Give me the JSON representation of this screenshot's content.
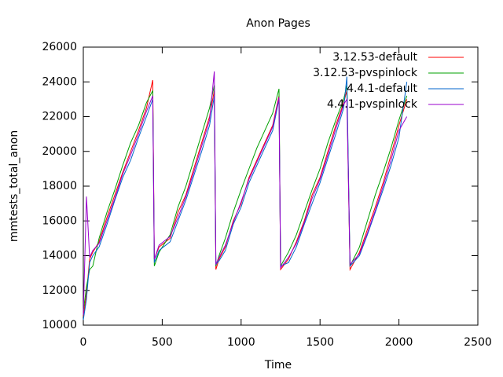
{
  "chart_data": {
    "type": "line",
    "title": "Anon Pages",
    "x_label": "Time",
    "y_label": "mmtests_total_anon",
    "x": [
      0,
      20,
      40,
      60,
      100,
      150,
      200,
      250,
      300,
      350,
      400,
      440,
      450,
      480,
      550,
      600,
      650,
      700,
      750,
      800,
      830,
      840,
      860,
      900,
      950,
      1000,
      1050,
      1100,
      1150,
      1200,
      1240,
      1250,
      1300,
      1350,
      1400,
      1450,
      1500,
      1550,
      1600,
      1650,
      1670,
      1690,
      1750,
      1800,
      1850,
      1900,
      1950,
      2000,
      2050
    ],
    "series": [
      {
        "name": "3.12.53-default",
        "color": "#ff0000",
        "values": [
          10500,
          11800,
          13800,
          14200,
          14800,
          16200,
          17500,
          18800,
          20000,
          21200,
          22500,
          24100,
          13800,
          14500,
          15000,
          16500,
          17500,
          19000,
          20500,
          22000,
          23500,
          13200,
          13800,
          14500,
          16000,
          17000,
          18500,
          19500,
          20500,
          21500,
          23200,
          13200,
          13800,
          14800,
          16000,
          17500,
          18500,
          20000,
          21500,
          22800,
          23500,
          13200,
          14200,
          15500,
          16800,
          18200,
          19800,
          21500,
          23000
        ]
      },
      {
        "name": "3.12.53-pvspinlock",
        "color": "#00a000",
        "values": [
          10800,
          12200,
          13200,
          13400,
          15000,
          16500,
          17800,
          19200,
          20500,
          21500,
          22800,
          23500,
          13400,
          14200,
          15200,
          16800,
          18000,
          19500,
          21000,
          22500,
          23800,
          13400,
          14000,
          15000,
          16500,
          17800,
          19000,
          20200,
          21200,
          22200,
          23600,
          13400,
          14200,
          15200,
          16500,
          17800,
          19000,
          20500,
          21800,
          23000,
          23800,
          13400,
          14500,
          16000,
          17500,
          18800,
          20200,
          21800,
          23200
        ]
      },
      {
        "name": "4.4.1-default",
        "color": "#0066cc",
        "values": [
          10300,
          11500,
          13600,
          14000,
          14500,
          15800,
          17200,
          18500,
          19500,
          20800,
          22000,
          23000,
          13600,
          14300,
          14800,
          16000,
          17200,
          18600,
          20000,
          21500,
          23200,
          13500,
          13700,
          14300,
          15800,
          16800,
          18200,
          19200,
          20200,
          21200,
          23000,
          13400,
          13600,
          14500,
          15800,
          17000,
          18200,
          19600,
          21000,
          22500,
          24300,
          13400,
          14000,
          15200,
          16500,
          17800,
          19200,
          20800,
          24000
        ]
      },
      {
        "name": "4.4.1-pvspinlock",
        "color": "#9900cc",
        "values": [
          10600,
          17400,
          13900,
          14300,
          14700,
          16000,
          17300,
          18700,
          19800,
          21000,
          22300,
          23200,
          13800,
          14600,
          15100,
          16200,
          17400,
          18800,
          20300,
          21800,
          24600,
          13500,
          13900,
          14600,
          15900,
          17100,
          18400,
          19400,
          20400,
          21400,
          23100,
          13300,
          13900,
          14700,
          15900,
          17300,
          18400,
          19800,
          21300,
          22700,
          23000,
          13500,
          14100,
          15300,
          16600,
          18000,
          19500,
          21200,
          22000
        ]
      }
    ],
    "xlim": [
      0,
      2500
    ],
    "xticks": [
      0,
      500,
      1000,
      1500,
      2000,
      2500
    ],
    "ylim": [
      10000,
      26000
    ],
    "yticks": [
      10000,
      12000,
      14000,
      16000,
      18000,
      20000,
      22000,
      24000,
      26000
    ],
    "legend": "upper right"
  }
}
